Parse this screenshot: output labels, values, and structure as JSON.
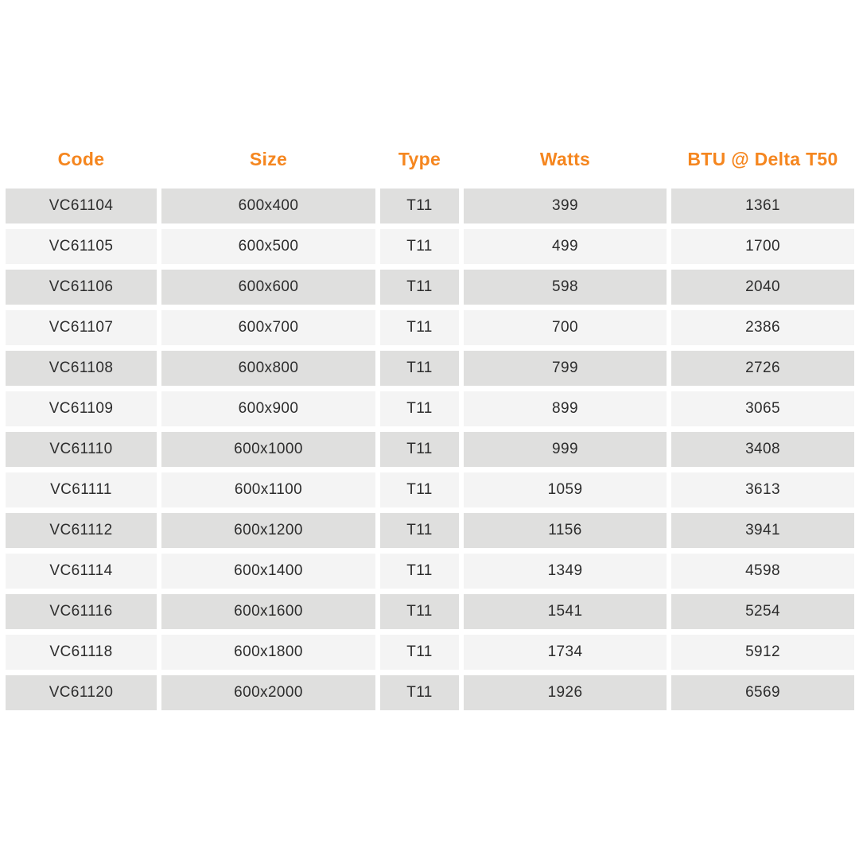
{
  "table": {
    "columns": [
      {
        "key": "code",
        "label": "Code"
      },
      {
        "key": "size",
        "label": "Size"
      },
      {
        "key": "type",
        "label": "Type"
      },
      {
        "key": "watts",
        "label": "Watts"
      },
      {
        "key": "btu",
        "label": "BTU @ Delta T50"
      }
    ],
    "rows": [
      [
        "VC61104",
        "600x400",
        "T11",
        "399",
        "1361"
      ],
      [
        "VC61105",
        "600x500",
        "T11",
        "499",
        "1700"
      ],
      [
        "VC61106",
        "600x600",
        "T11",
        "598",
        "2040"
      ],
      [
        "VC61107",
        "600x700",
        "T11",
        "700",
        "2386"
      ],
      [
        "VC61108",
        "600x800",
        "T11",
        "799",
        "2726"
      ],
      [
        "VC61109",
        "600x900",
        "T11",
        "899",
        "3065"
      ],
      [
        "VC61110",
        "600x1000",
        "T11",
        "999",
        "3408"
      ],
      [
        "VC61111",
        "600x1100",
        "T11",
        "1059",
        "3613"
      ],
      [
        "VC61112",
        "600x1200",
        "T11",
        "1156",
        "3941"
      ],
      [
        "VC61114",
        "600x1400",
        "T11",
        "1349",
        "4598"
      ],
      [
        "VC61116",
        "600x1600",
        "T11",
        "1541",
        "5254"
      ],
      [
        "VC61118",
        "600x1800",
        "T11",
        "1734",
        "5912"
      ],
      [
        "VC61120",
        "600x2000",
        "T11",
        "1926",
        "6569"
      ]
    ]
  },
  "chart_data": {
    "type": "table",
    "title": "",
    "columns": [
      "Code",
      "Size",
      "Type",
      "Watts",
      "BTU @ Delta T50"
    ],
    "rows": [
      [
        "VC61104",
        "600x400",
        "T11",
        399,
        1361
      ],
      [
        "VC61105",
        "600x500",
        "T11",
        499,
        1700
      ],
      [
        "VC61106",
        "600x600",
        "T11",
        598,
        2040
      ],
      [
        "VC61107",
        "600x700",
        "T11",
        700,
        2386
      ],
      [
        "VC61108",
        "600x800",
        "T11",
        799,
        2726
      ],
      [
        "VC61109",
        "600x900",
        "T11",
        899,
        3065
      ],
      [
        "VC61110",
        "600x1000",
        "T11",
        999,
        3408
      ],
      [
        "VC61111",
        "600x1100",
        "T11",
        1059,
        3613
      ],
      [
        "VC61112",
        "600x1200",
        "T11",
        1156,
        3941
      ],
      [
        "VC61114",
        "600x1400",
        "T11",
        1349,
        4598
      ],
      [
        "VC61116",
        "600x1600",
        "T11",
        1541,
        5254
      ],
      [
        "VC61118",
        "600x1800",
        "T11",
        1734,
        5912
      ],
      [
        "VC61120",
        "600x2000",
        "T11",
        1926,
        6569
      ]
    ]
  },
  "colors": {
    "header_text": "#f5861f",
    "row_odd_bg": "#dfdfde",
    "row_even_bg": "#f4f4f4",
    "cell_text": "#2d2d2d",
    "background": "#ffffff"
  }
}
